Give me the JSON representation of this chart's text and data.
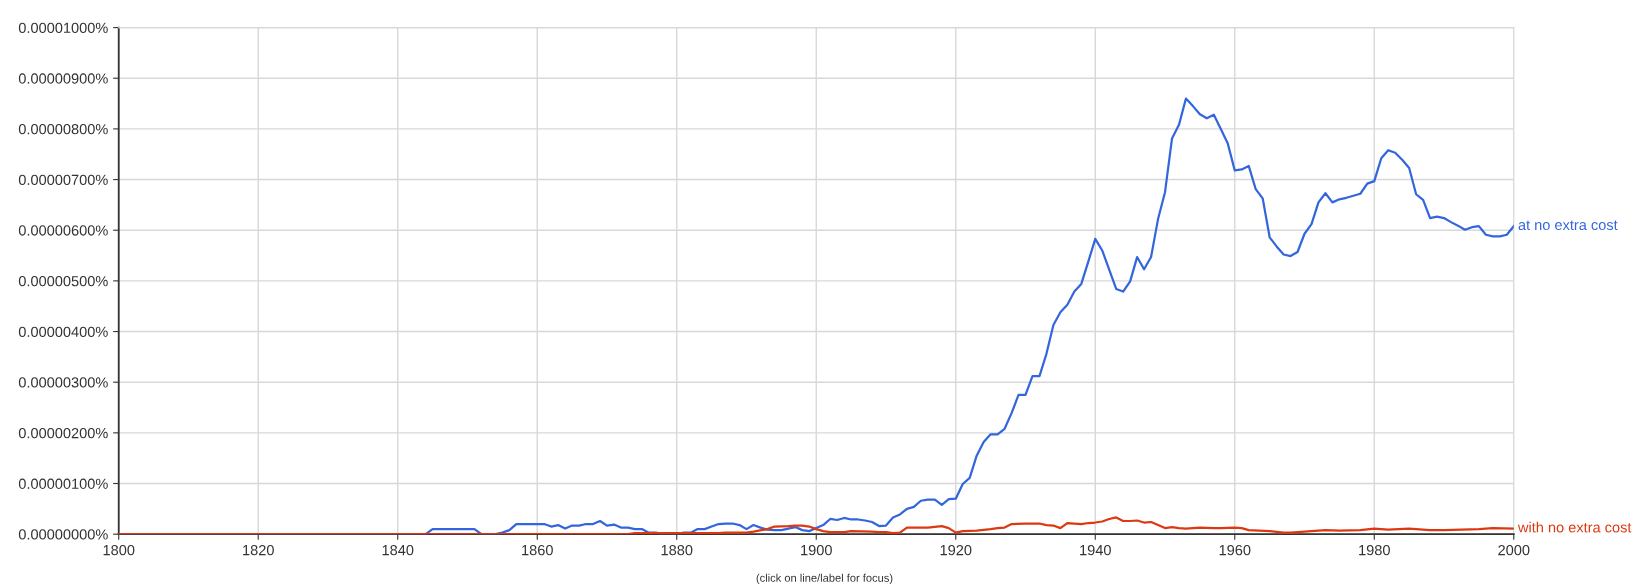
{
  "chart_data": {
    "type": "line",
    "annotations": [
      "(click on line/label for focus)"
    ],
    "xlim": [
      1800,
      2000
    ],
    "xticks": [
      1800,
      1820,
      1840,
      1860,
      1880,
      1900,
      1920,
      1940,
      1960,
      1980,
      2000
    ],
    "ylim": [
      0,
      1e-05
    ],
    "yticks": [
      {
        "value": 0,
        "label": "0.00000000%"
      },
      {
        "value": 1e-06,
        "label": "0.00000100%"
      },
      {
        "value": 2e-06,
        "label": "0.00000200%"
      },
      {
        "value": 3e-06,
        "label": "0.00000300%"
      },
      {
        "value": 4e-06,
        "label": "0.00000400%"
      },
      {
        "value": 5e-06,
        "label": "0.00000500%"
      },
      {
        "value": 6e-06,
        "label": "0.00000600%"
      },
      {
        "value": 7e-06,
        "label": "0.00000700%"
      },
      {
        "value": 8e-06,
        "label": "0.00000800%"
      },
      {
        "value": 9e-06,
        "label": "0.00000900%"
      },
      {
        "value": 1e-05,
        "label": "0.00001000%"
      }
    ],
    "grid": true,
    "legend": false,
    "marker": "none",
    "line_style": "solid",
    "series": [
      {
        "name": "at no extra cost",
        "color": "#3366dd",
        "x": [
          1800,
          1844,
          1845,
          1851,
          1852,
          1854,
          1855,
          1856,
          1857,
          1861,
          1862,
          1863,
          1864,
          1865,
          1866,
          1867,
          1868,
          1869,
          1870,
          1871,
          1872,
          1873,
          1874,
          1875,
          1876,
          1877,
          1878,
          1880,
          1881,
          1882,
          1883,
          1884,
          1885,
          1886,
          1887,
          1888,
          1889,
          1890,
          1891,
          1892,
          1893,
          1894,
          1895,
          1896,
          1897,
          1898,
          1899,
          1900,
          1901,
          1902,
          1903,
          1904,
          1905,
          1906,
          1907,
          1908,
          1909,
          1910,
          1911,
          1912,
          1913,
          1914,
          1915,
          1916,
          1917,
          1918,
          1919,
          1920,
          1921,
          1922,
          1923,
          1924,
          1925,
          1926,
          1927,
          1928,
          1929,
          1930,
          1931,
          1932,
          1933,
          1934,
          1935,
          1936,
          1937,
          1938,
          1939,
          1940,
          1941,
          1943,
          1944,
          1945,
          1946,
          1947,
          1948,
          1949,
          1950,
          1951,
          1952,
          1953,
          1954,
          1955,
          1956,
          1957,
          1958,
          1959,
          1960,
          1961,
          1962,
          1963,
          1964,
          1965,
          1966,
          1967,
          1968,
          1969,
          1970,
          1971,
          1972,
          1973,
          1974,
          1975,
          1976,
          1977,
          1978,
          1979,
          1980,
          1981,
          1982,
          1983,
          1984,
          1985,
          1986,
          1987,
          1988,
          1989,
          1990,
          1991,
          1992,
          1993,
          1994,
          1995,
          1996,
          1997,
          1998,
          1999,
          2000
        ],
        "values": [
          0,
          0,
          1e-07,
          1e-07,
          0,
          0,
          3e-08,
          8e-08,
          2e-07,
          2e-07,
          1.5e-07,
          1.8e-07,
          1.1e-07,
          1.7e-07,
          1.7e-07,
          2e-07,
          2e-07,
          2.6e-07,
          1.7e-07,
          1.9e-07,
          1.3e-07,
          1.3e-07,
          1e-07,
          1e-07,
          3e-08,
          3e-08,
          0,
          0,
          3e-08,
          3e-08,
          1e-07,
          1e-07,
          1.5e-07,
          2e-07,
          2.1e-07,
          2.1e-07,
          1.8e-07,
          1e-07,
          1.8e-07,
          1.3e-07,
          9e-08,
          8e-08,
          8e-08,
          1.1e-07,
          1.4e-07,
          8e-08,
          6e-08,
          1.2e-07,
          1.8e-07,
          3e-07,
          2.8e-07,
          3.2e-07,
          2.9e-07,
          2.9e-07,
          2.7e-07,
          2.4e-07,
          1.6e-07,
          1.7e-07,
          3.3e-07,
          3.9e-07,
          5e-07,
          5.4e-07,
          6.6e-07,
          6.8e-07,
          6.8e-07,
          5.8e-07,
          6.9e-07,
          7e-07,
          9.9e-07,
          1.11e-06,
          1.55e-06,
          1.82e-06,
          1.97e-06,
          1.97e-06,
          2.08e-06,
          2.39e-06,
          2.75e-06,
          2.75e-06,
          3.12e-06,
          3.12e-06,
          3.56e-06,
          4.13e-06,
          4.38e-06,
          4.53e-06,
          4.79e-06,
          4.94e-06,
          5.38e-06,
          5.83e-06,
          5.6e-06,
          4.84e-06,
          4.79e-06,
          4.99e-06,
          5.47e-06,
          5.23e-06,
          5.47e-06,
          6.22e-06,
          6.75e-06,
          7.81e-06,
          8.08e-06,
          8.6e-06,
          8.45e-06,
          8.29e-06,
          8.21e-06,
          8.28e-06,
          8e-06,
          7.71e-06,
          7.18e-06,
          7.2e-06,
          7.27e-06,
          6.81e-06,
          6.63e-06,
          5.86e-06,
          5.68e-06,
          5.52e-06,
          5.49e-06,
          5.57e-06,
          5.93e-06,
          6.12e-06,
          6.55e-06,
          6.73e-06,
          6.55e-06,
          6.61e-06,
          6.64e-06,
          6.68e-06,
          6.72e-06,
          6.92e-06,
          6.97e-06,
          7.42e-06,
          7.58e-06,
          7.53e-06,
          7.39e-06,
          7.23e-06,
          6.71e-06,
          6.6e-06,
          6.24e-06,
          6.27e-06,
          6.24e-06,
          6.16e-06,
          6.09e-06,
          6.01e-06,
          6.06e-06,
          6.08e-06,
          5.91e-06,
          5.88e-06,
          5.88e-06,
          5.91e-06,
          6.08e-06
        ]
      },
      {
        "name": "with no extra cost",
        "color": "#dc3912",
        "x": [
          1800,
          1873,
          1874,
          1886,
          1887,
          1890,
          1891,
          1893,
          1894,
          1896,
          1897,
          1898,
          1899,
          1900,
          1901,
          1902,
          1904,
          1905,
          1908,
          1909,
          1910,
          1911,
          1912,
          1913,
          1916,
          1918,
          1919,
          1920,
          1921,
          1923,
          1925,
          1926,
          1927,
          1928,
          1930,
          1932,
          1933,
          1934,
          1935,
          1936,
          1938,
          1939,
          1940,
          1941,
          1942,
          1943,
          1944,
          1945,
          1946,
          1947,
          1948,
          1949,
          1950,
          1951,
          1952,
          1953,
          1955,
          1957,
          1958,
          1960,
          1961,
          1962,
          1965,
          1967,
          1968,
          1970,
          1973,
          1975,
          1978,
          1980,
          1982,
          1985,
          1988,
          1990,
          1995,
          1997,
          2000
        ],
        "values": [
          0,
          0,
          2e-08,
          2e-08,
          3e-08,
          3e-08,
          5e-08,
          1e-07,
          1.5e-07,
          1.6e-07,
          1.7e-07,
          1.7e-07,
          1.5e-07,
          1e-07,
          6e-08,
          4e-08,
          4e-08,
          6e-08,
          5e-08,
          4e-08,
          4e-08,
          2e-08,
          3e-08,
          1.3e-07,
          1.3e-07,
          1.6e-07,
          1.2e-07,
          3e-08,
          6e-08,
          7e-08,
          1e-07,
          1.2e-07,
          1.3e-07,
          2e-07,
          2.1e-07,
          2.1e-07,
          1.8e-07,
          1.7e-07,
          1.2e-07,
          2.2e-07,
          2e-07,
          2.2e-07,
          2.3e-07,
          2.5e-07,
          3e-07,
          3.3e-07,
          2.6e-07,
          2.6e-07,
          2.7e-07,
          2.3e-07,
          2.4e-07,
          1.8e-07,
          1.2e-07,
          1.4e-07,
          1.2e-07,
          1.1e-07,
          1.3e-07,
          1.2e-07,
          1.2e-07,
          1.3e-07,
          1.2e-07,
          8e-08,
          6e-08,
          3e-08,
          3e-08,
          5e-08,
          8e-08,
          7e-08,
          8e-08,
          1.1e-07,
          9e-08,
          1.1e-07,
          8e-08,
          8e-08,
          1e-07,
          1.2e-07,
          1.1e-07
        ]
      }
    ]
  }
}
